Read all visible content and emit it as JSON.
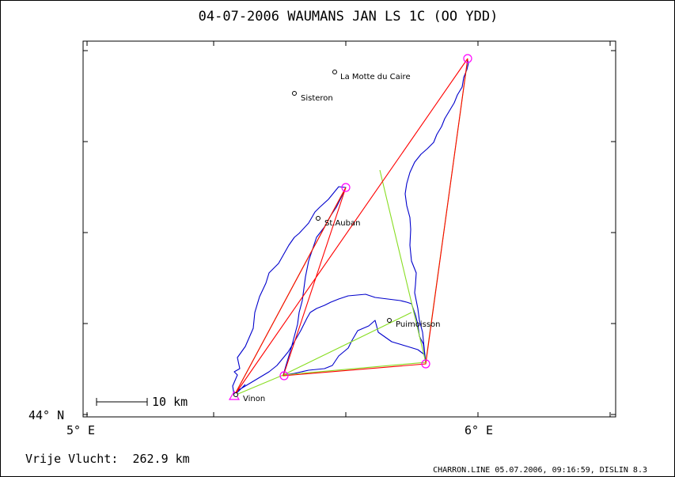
{
  "title": "04-07-2006   WAUMANS JAN   LS 1C (OO YDD)",
  "axes": {
    "x_left_label": "5° E",
    "x_right_label": "6° E",
    "y_bottom_label": "44° N"
  },
  "scale_bar": {
    "label": "10 km"
  },
  "places": [
    {
      "name": "La Motte du Caire"
    },
    {
      "name": "Sisteron"
    },
    {
      "name": "St.Auban"
    },
    {
      "name": "Puimoisson"
    },
    {
      "name": "Vinon"
    }
  ],
  "summary": "Vrije Vlucht:  262.9 km",
  "footer": "CHARRON.LINE 05.07.2006, 09:16:59, DISLIN 8.3",
  "colors": {
    "track": "#0000cc",
    "task_line": "#ff0000",
    "optimized_line": "#88dd22",
    "turnpoint_circle": "#ff00ff",
    "frame": "#000000"
  }
}
